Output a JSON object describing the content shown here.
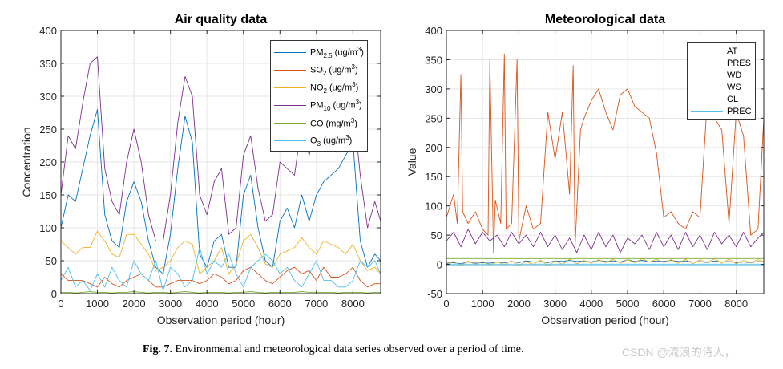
{
  "chart_data": [
    {
      "type": "line",
      "title": "Air quality data",
      "xlabel": "Observation period (hour)",
      "ylabel": "Concentration",
      "xlim": [
        0,
        8760
      ],
      "ylim": [
        0,
        400
      ],
      "xticks": [
        0,
        1000,
        2000,
        3000,
        4000,
        5000,
        6000,
        7000,
        8000
      ],
      "yticks": [
        0,
        50,
        100,
        150,
        200,
        250,
        300,
        350,
        400
      ],
      "grid": true,
      "legend_position": "top-right",
      "x": [
        0,
        200,
        400,
        600,
        800,
        1000,
        1200,
        1400,
        1600,
        1800,
        2000,
        2200,
        2400,
        2600,
        2800,
        3000,
        3200,
        3400,
        3600,
        3800,
        4000,
        4200,
        4400,
        4600,
        4800,
        5000,
        5200,
        5400,
        5600,
        5800,
        6000,
        6200,
        6400,
        6600,
        6800,
        7000,
        7200,
        7400,
        7600,
        7800,
        8000,
        8200,
        8400,
        8600,
        8760
      ],
      "series": [
        {
          "name": "PM2.5 (ug/m3)",
          "label": {
            "base": "PM",
            "sub": "2.5",
            "unit": " (ug/m",
            "sup": "3",
            "close": ")"
          },
          "color": "#0072BD",
          "values": [
            100,
            150,
            140,
            190,
            240,
            280,
            120,
            80,
            70,
            140,
            170,
            140,
            80,
            40,
            30,
            90,
            190,
            270,
            230,
            60,
            40,
            80,
            90,
            40,
            40,
            150,
            180,
            100,
            50,
            40,
            110,
            130,
            100,
            150,
            110,
            150,
            170,
            180,
            190,
            210,
            230,
            80,
            40,
            60,
            50
          ]
        },
        {
          "name": "SO2 (ug/m3)",
          "label": {
            "base": "SO",
            "sub": "2",
            "unit": " (ug/m",
            "sup": "3",
            "close": ")"
          },
          "color": "#D95319",
          "values": [
            30,
            20,
            20,
            20,
            15,
            10,
            25,
            15,
            10,
            20,
            25,
            30,
            20,
            10,
            10,
            15,
            20,
            20,
            20,
            15,
            20,
            30,
            25,
            15,
            20,
            35,
            40,
            30,
            20,
            15,
            25,
            35,
            40,
            30,
            35,
            20,
            40,
            25,
            25,
            30,
            40,
            20,
            10,
            15,
            15
          ]
        },
        {
          "name": "NO2 (ug/m3)",
          "label": {
            "base": "NO",
            "sub": "2",
            "unit": " (ug/m",
            "sup": "3",
            "close": ")"
          },
          "color": "#EDB120",
          "values": [
            80,
            70,
            60,
            70,
            70,
            95,
            80,
            60,
            55,
            90,
            90,
            75,
            60,
            35,
            40,
            50,
            70,
            80,
            75,
            30,
            40,
            50,
            70,
            30,
            45,
            80,
            90,
            70,
            45,
            40,
            60,
            65,
            70,
            85,
            70,
            60,
            80,
            75,
            70,
            60,
            75,
            50,
            35,
            40,
            30
          ]
        },
        {
          "name": "PM10 (ug/m3)",
          "label": {
            "base": "PM",
            "sub": "10",
            "unit": " (ug/m",
            "sup": "3",
            "close": ")"
          },
          "color": "#7E2F8E",
          "values": [
            150,
            240,
            220,
            290,
            350,
            360,
            190,
            140,
            120,
            200,
            250,
            200,
            120,
            80,
            80,
            150,
            260,
            330,
            300,
            150,
            120,
            170,
            190,
            90,
            100,
            210,
            240,
            160,
            110,
            120,
            200,
            190,
            180,
            260,
            210,
            250,
            240,
            220,
            250,
            230,
            290,
            180,
            100,
            140,
            110
          ]
        },
        {
          "name": "CO (mg/m3)",
          "label": {
            "base": "CO",
            "sub": "",
            "unit": " (mg/m",
            "sup": "3",
            "close": ")"
          },
          "color": "#77AC30",
          "values": [
            2,
            2,
            1,
            2,
            3,
            2,
            2,
            1,
            2,
            2,
            3,
            2,
            1,
            2,
            2,
            1,
            2,
            3,
            2,
            1,
            2,
            2,
            2,
            1,
            2,
            2,
            3,
            2,
            1,
            2,
            2,
            2,
            2,
            3,
            2,
            2,
            2,
            2,
            1,
            2,
            2,
            2,
            1,
            2,
            2
          ]
        },
        {
          "name": "O3 (ug/m3)",
          "label": {
            "base": "O",
            "sub": "3",
            "unit": " (ug/m",
            "sup": "3",
            "close": ")"
          },
          "color": "#4DBEEE",
          "values": [
            20,
            40,
            10,
            20,
            5,
            30,
            10,
            40,
            20,
            10,
            50,
            30,
            20,
            50,
            5,
            40,
            30,
            10,
            20,
            70,
            30,
            50,
            40,
            60,
            30,
            10,
            40,
            50,
            60,
            50,
            30,
            40,
            20,
            10,
            30,
            50,
            20,
            20,
            10,
            10,
            20,
            50,
            40,
            50,
            30
          ]
        }
      ]
    },
    {
      "type": "line",
      "title": "Meteorological data",
      "xlabel": "Observation period (hour)",
      "ylabel": "Value",
      "xlim": [
        0,
        8760
      ],
      "ylim": [
        -50,
        400
      ],
      "xticks": [
        0,
        1000,
        2000,
        3000,
        4000,
        5000,
        6000,
        7000,
        8000
      ],
      "yticks": [
        -50,
        0,
        50,
        100,
        150,
        200,
        250,
        300,
        350,
        400
      ],
      "grid": true,
      "legend_position": "top-right",
      "x": [
        0,
        200,
        400,
        600,
        800,
        1000,
        1200,
        1400,
        1600,
        1800,
        2000,
        2200,
        2400,
        2600,
        2800,
        3000,
        3200,
        3400,
        3600,
        3800,
        4000,
        4200,
        4400,
        4600,
        4800,
        5000,
        5200,
        5400,
        5600,
        5800,
        6000,
        6200,
        6400,
        6600,
        6800,
        7000,
        7200,
        7400,
        7600,
        7800,
        8000,
        8200,
        8400,
        8600,
        8760
      ],
      "series": [
        {
          "name": "AT",
          "color": "#0072BD",
          "values": [
            2,
            3,
            1,
            4,
            2,
            3,
            2,
            4,
            3,
            5,
            3,
            6,
            4,
            5,
            3,
            6,
            5,
            7,
            5,
            6,
            4,
            7,
            5,
            6,
            4,
            8,
            5,
            7,
            4,
            6,
            5,
            7,
            5,
            6,
            4,
            5,
            3,
            6,
            4,
            5,
            3,
            4,
            3,
            5,
            4
          ]
        },
        {
          "name": "PRES",
          "color": "#D95319",
          "x": [
            0,
            200,
            300,
            400,
            450,
            600,
            800,
            1000,
            1150,
            1200,
            1300,
            1350,
            1500,
            1600,
            1650,
            1800,
            1950,
            2000,
            2200,
            2400,
            2600,
            2800,
            3000,
            3200,
            3400,
            3500,
            3550,
            3700,
            3800,
            4000,
            4200,
            4400,
            4600,
            4800,
            5000,
            5200,
            5400,
            5600,
            5800,
            6000,
            6200,
            6400,
            6600,
            6800,
            7000,
            7200,
            7400,
            7600,
            7800,
            8000,
            8200,
            8400,
            8600,
            8760
          ],
          "values": [
            80,
            120,
            70,
            325,
            90,
            70,
            90,
            60,
            50,
            350,
            20,
            110,
            70,
            360,
            60,
            70,
            350,
            40,
            100,
            60,
            70,
            260,
            180,
            260,
            120,
            340,
            30,
            230,
            250,
            280,
            300,
            260,
            230,
            290,
            300,
            270,
            260,
            250,
            190,
            80,
            90,
            70,
            60,
            90,
            80,
            280,
            250,
            230,
            70,
            260,
            220,
            50,
            60,
            250
          ]
        },
        {
          "name": "WD",
          "color": "#EDB120",
          "values": [
            0,
            5,
            -2,
            6,
            0,
            5,
            -1,
            4,
            0,
            6,
            -2,
            5,
            0,
            8,
            -3,
            6,
            0,
            9,
            1,
            7,
            2,
            8,
            3,
            9,
            2,
            8,
            3,
            10,
            4,
            9,
            3,
            8,
            2,
            9,
            1,
            8,
            3,
            10,
            2,
            9,
            1,
            7,
            3,
            8,
            5
          ]
        },
        {
          "name": "WS",
          "color": "#7E2F8E",
          "values": [
            40,
            55,
            30,
            60,
            35,
            55,
            40,
            50,
            30,
            55,
            35,
            50,
            30,
            55,
            30,
            50,
            25,
            45,
            20,
            50,
            25,
            55,
            30,
            50,
            20,
            45,
            35,
            50,
            25,
            55,
            30,
            50,
            25,
            55,
            30,
            50,
            25,
            55,
            35,
            50,
            30,
            55,
            30,
            45,
            55
          ]
        },
        {
          "name": "CL",
          "color": "#77AC30",
          "values": [
            10,
            10,
            10,
            10,
            10,
            10,
            10,
            10,
            10,
            10,
            10,
            10,
            10,
            10,
            10,
            10,
            10,
            10,
            10,
            10,
            10,
            10,
            10,
            10,
            10,
            10,
            10,
            10,
            10,
            10,
            10,
            10,
            10,
            10,
            10,
            10,
            10,
            10,
            10,
            10,
            10,
            10,
            10,
            10,
            10
          ]
        },
        {
          "name": "PREC",
          "color": "#4DBEEE",
          "values": [
            -1,
            -1,
            -1,
            -1,
            -1,
            -1,
            -1,
            -1,
            -1,
            -1,
            -1,
            -1,
            -1,
            -1,
            -1,
            -1,
            -1,
            -1,
            -1,
            -1,
            -1,
            -1,
            -1,
            -1,
            -1,
            -1,
            -1,
            -1,
            -1,
            -1,
            -1,
            -1,
            -1,
            -1,
            -1,
            -1,
            -1,
            -1,
            -1,
            -1,
            -1,
            -1,
            -1,
            -1,
            -1
          ]
        }
      ]
    }
  ],
  "caption": {
    "label": "Fig. 7.",
    "text": "Environmental and meteorological data series observed over a period of time."
  },
  "watermark": "CSDN @流浪的诗人，"
}
